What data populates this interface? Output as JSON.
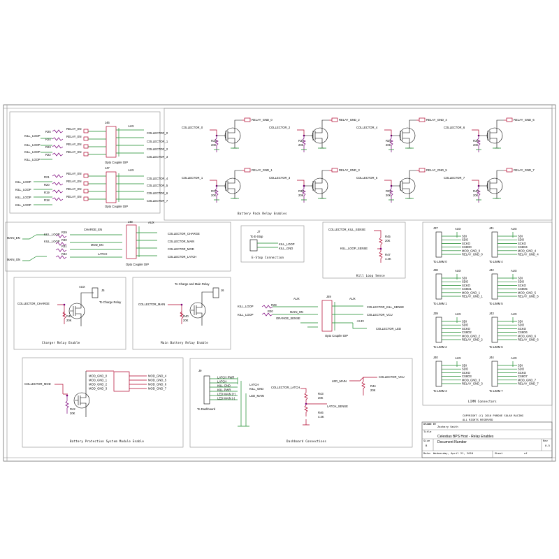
{
  "copyright": [
    "COPYRIGHT (C) 2010 PURDUE SOLAR RACING",
    "ALL RIGHTS RESERVED"
  ],
  "title_block": {
    "drawn_by_label": "DRAWN BY",
    "drawn_by": "Zachary Smith",
    "title_label": "Title",
    "title": "Celestias BPS Host - Relay Enables",
    "size_label": "Size",
    "size": "B",
    "doc_label": "Document Number",
    "rev_label": "Rev",
    "rev": "0.5",
    "date_label": "Date:",
    "date": "Wednesday, April 21, 2010",
    "sheet_label": "Sheet",
    "of_label": "of"
  },
  "sections": {
    "opto_left": "Opto Coupler DIP",
    "battery_pack": "Battery Pack Relay Enables",
    "opto_mid": "Opto Coupler DIP",
    "estop": "E-Stop Connection",
    "kill_loop": "Kill Loop Sense",
    "limm": "LIMM Connectors",
    "charger": "Charger Relay Enable",
    "main_battery": "Main Battery Relay Enable",
    "opto_kill": "Opto Coupler DIP",
    "bpsme": "Battery Protection System Module Enable",
    "dashboard": "Dashboard Connections"
  },
  "nets": {
    "kill_loop": "KILL_LOOP",
    "relay_en": "RELAY_EN",
    "aux": "AUX",
    "kill_gnd": "KILL_GND",
    "main_en": "MAIN_EN",
    "main_on": "MAIN_ON",
    "charge_en": "CHARGE_EN",
    "mod_en": "MOD_EN",
    "latch": "LATCH",
    "collector_charge": "COLLECTOR_CHARGE",
    "collector_main": "COLLECTOR_MAIN",
    "collector_mod": "COLLECTOR_MOD",
    "collector_latch": "COLLECTOR_LATCH",
    "collector_kill_sense": "COLLECTOR_KILL_SENSE",
    "collector_vcu": "COLLECTOR_VCU",
    "collector_led": "COLLECTOR_LED",
    "kill_loop_sense": "KILL_LOOP_SENSE",
    "orange_sense": "ORANGE_SENSE",
    "latch_sense": "LATCH_SENSE",
    "led_main": "LED_MAIN",
    "v33": "+3.3V",
    "to_estop": "To E-Stop",
    "to_charge_relay": "To Charge Relay",
    "to_charge_main": "To Charge and Main Relay",
    "to_dashboard": "To Dashboard"
  },
  "relay_left": {
    "j46": "J46",
    "j47": "J47",
    "res1": [
      "R25",
      "R24",
      "R23",
      "R22"
    ],
    "res2": [
      "R21",
      "R20",
      "R19",
      "R18"
    ],
    "collectors1": [
      "COLLECTOR_0",
      "COLLECTOR_1",
      "COLLECTOR_2",
      "COLLECTOR_3"
    ],
    "collectors2": [
      "COLLECTOR_4",
      "COLLECTOR_5",
      "COLLECTOR_6",
      "COLLECTOR_7"
    ]
  },
  "relay_array": {
    "row1": [
      {
        "collector": "COLLECTOR_0",
        "gnd": "RELAY_GND_0",
        "res": "R33",
        "val": "20K"
      },
      {
        "collector": "COLLECTOR_2",
        "gnd": "RELAY_GND_2",
        "res": "R34",
        "val": "20K"
      },
      {
        "collector": "COLLECTOR_4",
        "gnd": "RELAY_GND_4",
        "res": "R35",
        "val": "20K"
      },
      {
        "collector": "COLLECTOR_6",
        "gnd": "RELAY_GND_6",
        "res": "R36",
        "val": "20K"
      }
    ],
    "row2": [
      {
        "collector": "COLLECTOR_1",
        "gnd": "RELAY_GND_1",
        "res": "R37",
        "val": "20K"
      },
      {
        "collector": "COLLECTOR_3",
        "gnd": "RELAY_GND_3",
        "res": "R38",
        "val": "20K"
      },
      {
        "collector": "COLLECTOR_5",
        "gnd": "RELAY_GND_5",
        "res": "R39",
        "val": "20K"
      },
      {
        "collector": "COLLECTOR_7",
        "gnd": "RELAY_GND_7",
        "res": "R40",
        "val": "20K"
      }
    ]
  },
  "parts": {
    "j48": "J48",
    "j7": "J7",
    "j5": "J5",
    "j6": "J6",
    "j49": "J49",
    "j9": "J9",
    "r45": "R45",
    "r47": "R47",
    "r41": "R41",
    "r40b": "R40",
    "r42": "R42",
    "r43": "R43",
    "r44": "R44",
    "r46": "R46",
    "r29": "R29",
    "r30": "R30",
    "r31": "R31",
    "r32": "R32",
    "v20k": "20K",
    "v44k": "4.4K"
  },
  "limm": [
    {
      "ref": "J37",
      "label": "To LIMM 0",
      "signals": [
        "SDI",
        "SDO",
        "SCKO",
        "CS8O0",
        "MOD_GND_0",
        "RELAY_GND_0"
      ]
    },
    {
      "ref": "J41",
      "label": "To LIMM 4",
      "signals": [
        "SDI",
        "SDO",
        "SCKO",
        "CS8O4",
        "MOD_GND_4",
        "RELAY_GND_4"
      ]
    },
    {
      "ref": "J38",
      "label": "To LIMM 1",
      "signals": [
        "SDI",
        "SDO",
        "SCKO",
        "CS8O1",
        "MOD_GND_1",
        "RELAY_GND_1"
      ]
    },
    {
      "ref": "J42",
      "label": "To LIMM 5",
      "signals": [
        "SDI",
        "SDO",
        "SCKO",
        "CS8O5",
        "MOD_GND_5",
        "RELAY_GND_5"
      ]
    },
    {
      "ref": "J39",
      "label": "To LIMM 2",
      "signals": [
        "SDI",
        "SDO",
        "SCKO",
        "CS8O2",
        "MOD_GND_2",
        "RELAY_GND_2"
      ]
    },
    {
      "ref": "J43",
      "label": "To LIMM 6",
      "signals": [
        "SDI",
        "SDO",
        "SCKO",
        "CS8O6",
        "MOD_GND_6",
        "RELAY_GND_6"
      ]
    },
    {
      "ref": "J40",
      "label": "To LIMM 3",
      "signals": [
        "SDI",
        "SDO",
        "SCKO",
        "CS8O3",
        "MOD_GND_3",
        "RELAY_GND_3"
      ]
    },
    {
      "ref": "J44",
      "label": "To LIMM 7",
      "signals": [
        "SDI",
        "SDO",
        "SCKO",
        "CS8O7",
        "MOD_GND_7",
        "RELAY_GND_7"
      ]
    }
  ],
  "bpsme_nets": [
    "MOD_GND_0",
    "MOD_GND_1",
    "MOD_GND_2",
    "MOD_GND_3",
    "MOD_GND_4",
    "MOD_GND_5",
    "MOD_GND_6",
    "MOD_GND_7"
  ],
  "dashboard_pins": [
    "LATCH PWR",
    "LATCH",
    "KILL GND",
    "KILL PWR",
    "LED MAIN (+)",
    "LED MAIN (-)"
  ]
}
